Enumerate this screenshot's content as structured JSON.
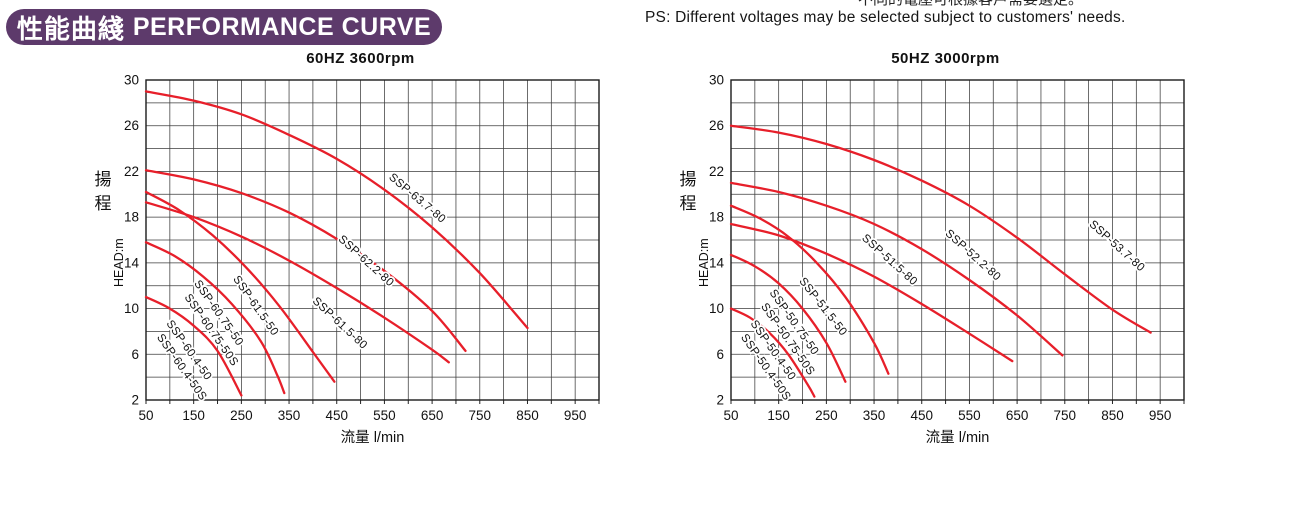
{
  "header": {
    "badge": {
      "text_cn": "性能曲綫",
      "text_en": "PERFORMANCE CURVE",
      "color": "#5d3a6b",
      "text_color": "#ffffff"
    },
    "clipped_note_cn": "不同的電壓可根據客戶需要選定。",
    "ps_note": "PS: Different voltages may be selected subject to customers' needs."
  },
  "chart_data": [
    {
      "type": "line",
      "title": "60HZ  3600rpm",
      "xlabel": "流量 l/min",
      "ylabel_cn": "揚程",
      "ylabel_rotated": "HEAD:m",
      "xlim": [
        50,
        1000
      ],
      "ylim": [
        2,
        30
      ],
      "x_tick_labels": [
        50,
        150,
        250,
        350,
        450,
        550,
        650,
        750,
        850,
        950
      ],
      "y_tick_labels": [
        30,
        26,
        22,
        18,
        14,
        10,
        6,
        2
      ],
      "grid": {
        "x_step": 50,
        "y_step": 2,
        "on": true,
        "color": "#3c3c3c"
      },
      "curve_color": "#e71f2a",
      "legend_position": "labels-on-curves",
      "series": [
        {
          "name": "SSP-63.7-80",
          "points": [
            [
              50,
              29
            ],
            [
              150,
              28.2
            ],
            [
              250,
              27
            ],
            [
              350,
              25.2
            ],
            [
              450,
              23.1
            ],
            [
              550,
              20.4
            ],
            [
              650,
              17.1
            ],
            [
              750,
              13.1
            ],
            [
              850,
              8.3
            ]
          ],
          "labels": [
            {
              "text": "SSP-63.7-80",
              "q": 558,
              "h": 21.4,
              "rot": 40
            }
          ]
        },
        {
          "name": "SSP-62.2-80",
          "points": [
            [
              50,
              22.1
            ],
            [
              150,
              21.3
            ],
            [
              250,
              20.1
            ],
            [
              350,
              18.4
            ],
            [
              450,
              16.1
            ],
            [
              550,
              13.3
            ],
            [
              650,
              9.8
            ],
            [
              720,
              6.3
            ]
          ],
          "labels": [
            {
              "text": "SSP-62.2-80",
              "q": 452,
              "h": 16.0,
              "rot": 42
            }
          ]
        },
        {
          "name": "SSP-61.5-80",
          "points": [
            [
              50,
              19.3
            ],
            [
              150,
              18
            ],
            [
              250,
              16.3
            ],
            [
              350,
              14.2
            ],
            [
              450,
              11.8
            ],
            [
              550,
              9.2
            ],
            [
              650,
              6.4
            ],
            [
              685,
              5.3
            ]
          ],
          "labels": [
            {
              "text": "SSP-61.5-80",
              "q": 398,
              "h": 10.6,
              "rot": 43
            }
          ]
        },
        {
          "name": "SSP-61.5-50",
          "points": [
            [
              50,
              20.2
            ],
            [
              120,
              18.6
            ],
            [
              190,
              16.4
            ],
            [
              260,
              13.6
            ],
            [
              330,
              10.2
            ],
            [
              400,
              6.2
            ],
            [
              445,
              3.6
            ]
          ],
          "labels": [
            {
              "text": "SSP-61.5-50",
              "q": 232,
              "h": 12.6,
              "rot": 55
            }
          ]
        },
        {
          "name": "SSP-60.75-50 / SSP-60.75-50S",
          "points": [
            [
              50,
              15.8
            ],
            [
              110,
              14.6
            ],
            [
              170,
              12.8
            ],
            [
              230,
              10.4
            ],
            [
              290,
              7.2
            ],
            [
              325,
              4.2
            ],
            [
              340,
              2.6
            ]
          ],
          "labels": [
            {
              "text": "SSP-60.75-50",
              "q": 150,
              "h": 12.2,
              "rot": 55
            },
            {
              "text": "SSP-60.75-50S",
              "q": 130,
              "h": 11.0,
              "rot": 55
            }
          ]
        },
        {
          "name": "SSP-60.4-50 / SSP-60.4-50S",
          "points": [
            [
              50,
              11
            ],
            [
              100,
              10
            ],
            [
              150,
              8.5
            ],
            [
              200,
              6.3
            ],
            [
              250,
              2.4
            ]
          ],
          "labels": [
            {
              "text": "SSP-60.4-50",
              "q": 92,
              "h": 8.7,
              "rot": 55
            },
            {
              "text": "SSP-60.4-50S",
              "q": 72,
              "h": 7.5,
              "rot": 55
            }
          ]
        }
      ]
    },
    {
      "type": "line",
      "title": "50HZ  3000rpm",
      "xlabel": "流量 l/min",
      "ylabel_cn": "揚程",
      "ylabel_rotated": "HEAD:m",
      "xlim": [
        50,
        1000
      ],
      "ylim": [
        2,
        30
      ],
      "x_tick_labels": [
        50,
        150,
        250,
        350,
        450,
        550,
        650,
        750,
        850,
        950
      ],
      "y_tick_labels": [
        30,
        26,
        22,
        18,
        14,
        10,
        6,
        2
      ],
      "grid": {
        "x_step": 50,
        "y_step": 2,
        "on": true,
        "color": "#3c3c3c"
      },
      "curve_color": "#e71f2a",
      "legend_position": "labels-on-curves",
      "series": [
        {
          "name": "SSP-53.7-80",
          "points": [
            [
              50,
              26
            ],
            [
              150,
              25.4
            ],
            [
              250,
              24.4
            ],
            [
              350,
              23
            ],
            [
              450,
              21.2
            ],
            [
              550,
              19
            ],
            [
              650,
              16.2
            ],
            [
              750,
              13
            ],
            [
              850,
              9.9
            ],
            [
              930,
              7.9
            ]
          ],
          "labels": [
            {
              "text": "SSP-53.7-80",
              "q": 800,
              "h": 17.3,
              "rot": 42
            }
          ]
        },
        {
          "name": "SSP-52.2-80",
          "points": [
            [
              50,
              21
            ],
            [
              150,
              20.2
            ],
            [
              250,
              19
            ],
            [
              350,
              17.4
            ],
            [
              450,
              15.2
            ],
            [
              550,
              12.5
            ],
            [
              650,
              9.4
            ],
            [
              745,
              5.9
            ]
          ],
          "labels": [
            {
              "text": "SSP-52.2-80",
              "q": 498,
              "h": 16.5,
              "rot": 42
            }
          ]
        },
        {
          "name": "SSP-51.5-80",
          "points": [
            [
              50,
              17.4
            ],
            [
              150,
              16.4
            ],
            [
              250,
              14.8
            ],
            [
              350,
              12.8
            ],
            [
              450,
              10.4
            ],
            [
              550,
              7.8
            ],
            [
              640,
              5.4
            ]
          ],
          "labels": [
            {
              "text": "SSP-51.5-80",
              "q": 323,
              "h": 16.1,
              "rot": 42
            }
          ]
        },
        {
          "name": "SSP-51.5-50",
          "points": [
            [
              50,
              19
            ],
            [
              110,
              17.9
            ],
            [
              170,
              16.3
            ],
            [
              230,
              14
            ],
            [
              290,
              11
            ],
            [
              350,
              7
            ],
            [
              380,
              4.3
            ]
          ],
          "labels": [
            {
              "text": "SSP-51.5-50",
              "q": 192,
              "h": 12.4,
              "rot": 52
            }
          ]
        },
        {
          "name": "SSP-50.75-50 / SSP-50.75-50S",
          "points": [
            [
              50,
              14.7
            ],
            [
              100,
              13.7
            ],
            [
              150,
              12.2
            ],
            [
              200,
              10
            ],
            [
              250,
              7
            ],
            [
              290,
              3.6
            ]
          ],
          "labels": [
            {
              "text": "SSP-50.75-50",
              "q": 130,
              "h": 11.4,
              "rot": 55
            },
            {
              "text": "SSP-50.75-50S",
              "q": 112,
              "h": 10.2,
              "rot": 55
            }
          ]
        },
        {
          "name": "SSP-50.4-50 / SSP-50.4-50S",
          "points": [
            [
              50,
              10
            ],
            [
              90,
              9.2
            ],
            [
              130,
              7.9
            ],
            [
              170,
              6
            ],
            [
              210,
              3.4
            ],
            [
              225,
              2.3
            ]
          ],
          "labels": [
            {
              "text": "SSP-50.4-50",
              "q": 90,
              "h": 8.7,
              "rot": 55
            },
            {
              "text": "SSP-50.4-50S",
              "q": 70,
              "h": 7.5,
              "rot": 55
            }
          ]
        }
      ]
    }
  ]
}
